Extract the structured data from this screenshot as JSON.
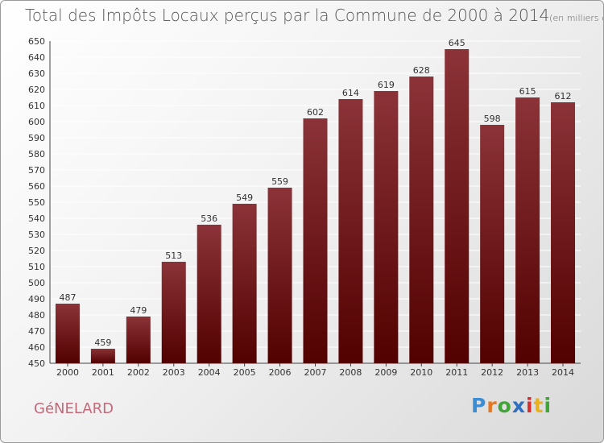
{
  "title": {
    "main": "Total des Impôts Locaux perçus par la Commune de 2000 à 2014",
    "unit": "(en milliers d'€)"
  },
  "commune": "GéNELARD",
  "logo": {
    "text": "Proxiti",
    "letters": [
      "P",
      "r",
      "o",
      "x",
      "i",
      "t",
      "i"
    ],
    "colors": [
      "#3b8ed3",
      "#e8761f",
      "#3fa535",
      "#2f6fbf",
      "#d62c2c",
      "#e8b21f",
      "#3fa535"
    ]
  },
  "colors": {
    "bar_top": "#8b3338",
    "bar_bottom": "#520000",
    "grid": "#ffffff",
    "axis": "#444444",
    "label": "#333333"
  },
  "chart_data": {
    "type": "bar",
    "title": "Total des Impôts Locaux perçus par la Commune de 2000 à 2014",
    "xlabel": "",
    "ylabel": "",
    "categories": [
      "2000",
      "2001",
      "2002",
      "2003",
      "2004",
      "2005",
      "2006",
      "2007",
      "2008",
      "2009",
      "2010",
      "2011",
      "2012",
      "2013",
      "2014"
    ],
    "values": [
      487,
      459,
      479,
      513,
      536,
      549,
      559,
      602,
      614,
      619,
      628,
      645,
      598,
      615,
      612
    ],
    "ylim": [
      450,
      650
    ],
    "yticks": [
      450,
      460,
      470,
      480,
      490,
      500,
      510,
      520,
      530,
      540,
      550,
      560,
      570,
      580,
      590,
      600,
      610,
      620,
      630,
      640,
      650
    ],
    "grid": true
  }
}
